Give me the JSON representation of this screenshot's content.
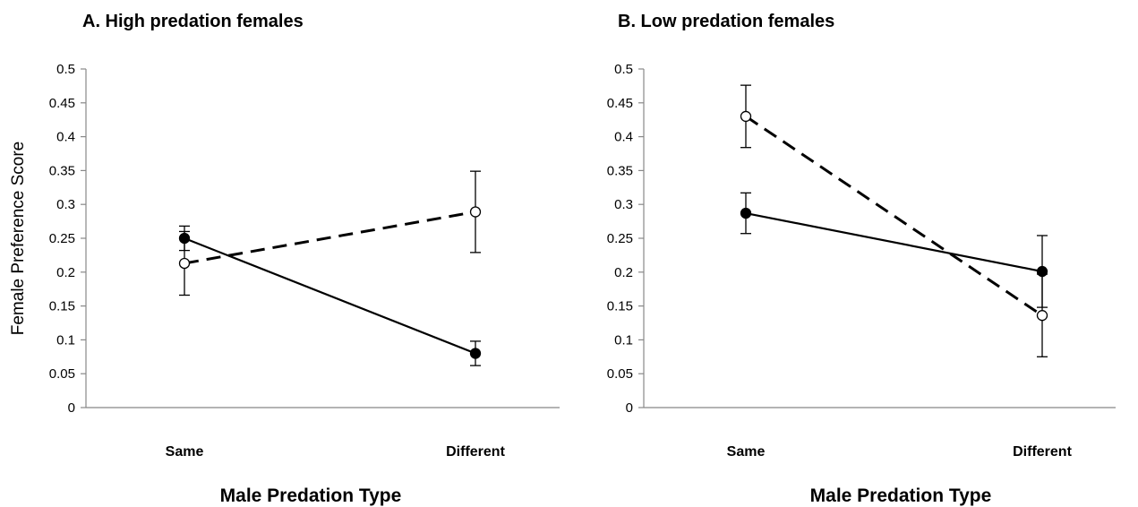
{
  "chart_data": [
    {
      "type": "line",
      "title": "A. High predation females",
      "ylabel": "Female Preference Score",
      "xlabel": "Male Predation Type",
      "categories": [
        "Same",
        "Different"
      ],
      "ylim": [
        0,
        0.5
      ],
      "yticks": [
        "0",
        "0.05",
        "0.1",
        "0.15",
        "0.2",
        "0.25",
        "0.3",
        "0.35",
        "0.4",
        "0.45",
        "0.5"
      ],
      "grid": false,
      "series": [
        {
          "marker": "filled-circle",
          "line_style": "solid",
          "color": "#000000",
          "values": [
            0.25,
            0.08
          ],
          "error": [
            0.018,
            0.018
          ]
        },
        {
          "marker": "open-circle",
          "line_style": "dashed",
          "color": "#000000",
          "values": [
            0.213,
            0.289
          ],
          "error": [
            0.047,
            0.06
          ]
        }
      ]
    },
    {
      "type": "line",
      "title": "B. Low predation females",
      "ylabel": "",
      "xlabel": "Male Predation Type",
      "categories": [
        "Same",
        "Different"
      ],
      "ylim": [
        0,
        0.5
      ],
      "yticks": [
        "0",
        "0.05",
        "0.1",
        "0.15",
        "0.2",
        "0.25",
        "0.3",
        "0.35",
        "0.4",
        "0.45",
        "0.5"
      ],
      "grid": false,
      "series": [
        {
          "marker": "filled-circle",
          "line_style": "solid",
          "color": "#000000",
          "values": [
            0.287,
            0.201
          ],
          "error": [
            0.03,
            0.053
          ]
        },
        {
          "marker": "open-circle",
          "line_style": "dashed",
          "color": "#000000",
          "values": [
            0.43,
            0.136
          ],
          "error": [
            0.046,
            0.061
          ]
        }
      ]
    }
  ]
}
